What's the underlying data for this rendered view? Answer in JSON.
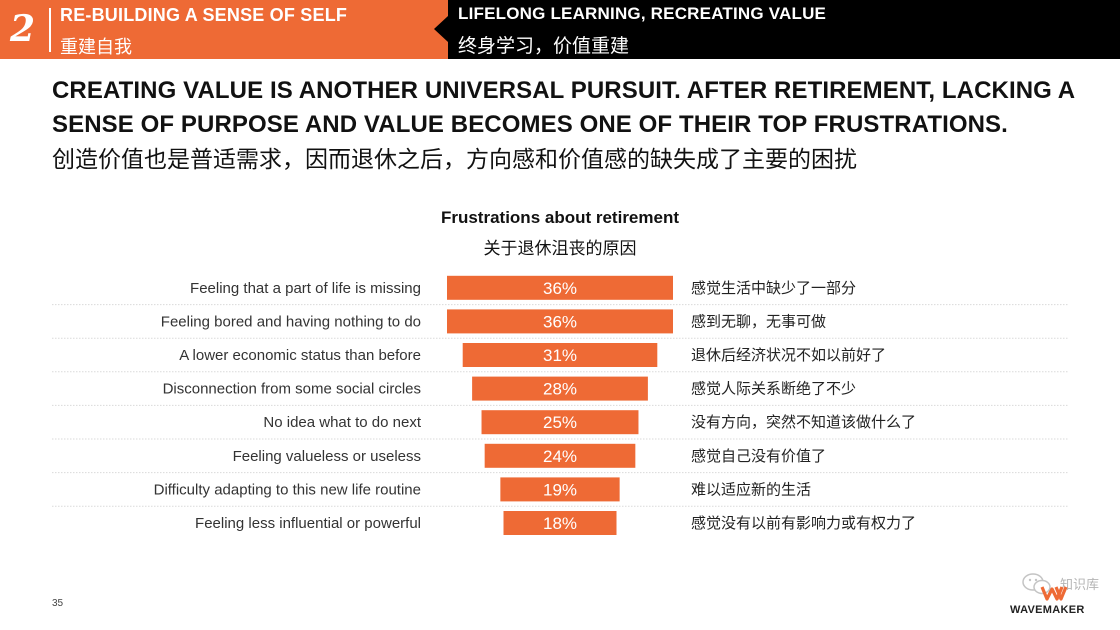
{
  "header": {
    "section_number": "2",
    "left_title_en": "RE-BUILDING A SENSE OF SELF",
    "left_title_cn": "重建自我",
    "right_title_en": "LIFELONG LEARNING, RECREATING VALUE",
    "right_title_cn": "终身学习，价值重建",
    "colors": {
      "accent": "#ee6a35",
      "dark": "#000000"
    }
  },
  "headline": {
    "en": "CREATING VALUE IS ANOTHER UNIVERSAL PURSUIT. AFTER RETIREMENT, LACKING A SENSE OF PURPOSE AND VALUE BECOMES ONE OF THEIR TOP FRUSTRATIONS.",
    "cn": "创造价值也是普适需求，因而退休之后，方向感和价值感的缺失成了主要的困扰"
  },
  "chart_data": {
    "type": "bar",
    "orientation": "horizontal-centered",
    "title": "Frustrations about retirement",
    "subtitle": "关于退休沮丧的原因",
    "unit": "%",
    "bar_color": "#ee6a35",
    "categories": [
      "Feeling that a part of life is missing",
      "Feeling bored and having nothing to do",
      "A lower economic status than before",
      "Disconnection from some social circles",
      "No idea what to do next",
      "Feeling valueless or useless",
      "Difficulty adapting to this new life routine",
      "Feeling less influential or powerful"
    ],
    "categories_cn": [
      "感觉生活中缺少了一部分",
      "感到无聊，无事可做",
      "退休后经济状况不如以前好了",
      "感觉人际关系断绝了不少",
      "没有方向，突然不知道该做什么了",
      "感觉自己没有价值了",
      "难以适应新的生活",
      "感觉没有以前有影响力或有权力了"
    ],
    "values": [
      36,
      36,
      31,
      28,
      25,
      24,
      19,
      18
    ],
    "value_labels": [
      "36%",
      "36%",
      "31%",
      "28%",
      "25%",
      "24%",
      "19%",
      "18%"
    ]
  },
  "footer": {
    "page_number": "35",
    "brand": "WAVEMAKER",
    "watermark": "知识库"
  }
}
